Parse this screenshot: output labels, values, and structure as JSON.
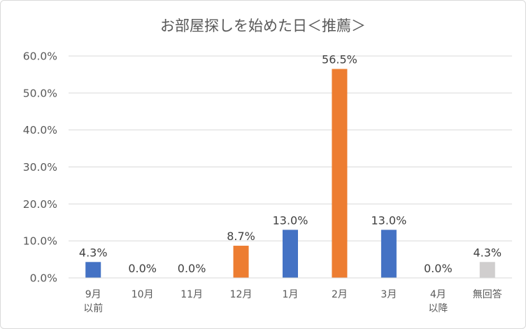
{
  "chart_data": {
    "type": "bar",
    "title": "お部屋探しを始めた日＜推薦＞",
    "categories": [
      [
        "9月",
        "以前"
      ],
      [
        "10月"
      ],
      [
        "11月"
      ],
      [
        "12月"
      ],
      [
        "1月"
      ],
      [
        "2月"
      ],
      [
        "3月"
      ],
      [
        "4月",
        "以降"
      ],
      [
        "無回答"
      ]
    ],
    "values": [
      4.3,
      0.0,
      0.0,
      8.7,
      13.0,
      56.5,
      13.0,
      0.0,
      4.3
    ],
    "value_labels": [
      "4.3%",
      "0.0%",
      "0.0%",
      "8.7%",
      "13.0%",
      "56.5%",
      "13.0%",
      "0.0%",
      "4.3%"
    ],
    "bar_colors": [
      "#4472c4",
      "#4472c4",
      "#4472c4",
      "#ed7d31",
      "#4472c4",
      "#ed7d31",
      "#4472c4",
      "#4472c4",
      "#d0cece"
    ],
    "ylim": [
      0,
      60
    ],
    "yticks": [
      0,
      10,
      20,
      30,
      40,
      50,
      60
    ],
    "ytick_labels": [
      "0.0%",
      "10.0%",
      "20.0%",
      "30.0%",
      "40.0%",
      "50.0%",
      "60.0%"
    ],
    "xlabel": "",
    "ylabel": "",
    "grid": true,
    "legend": "none"
  }
}
